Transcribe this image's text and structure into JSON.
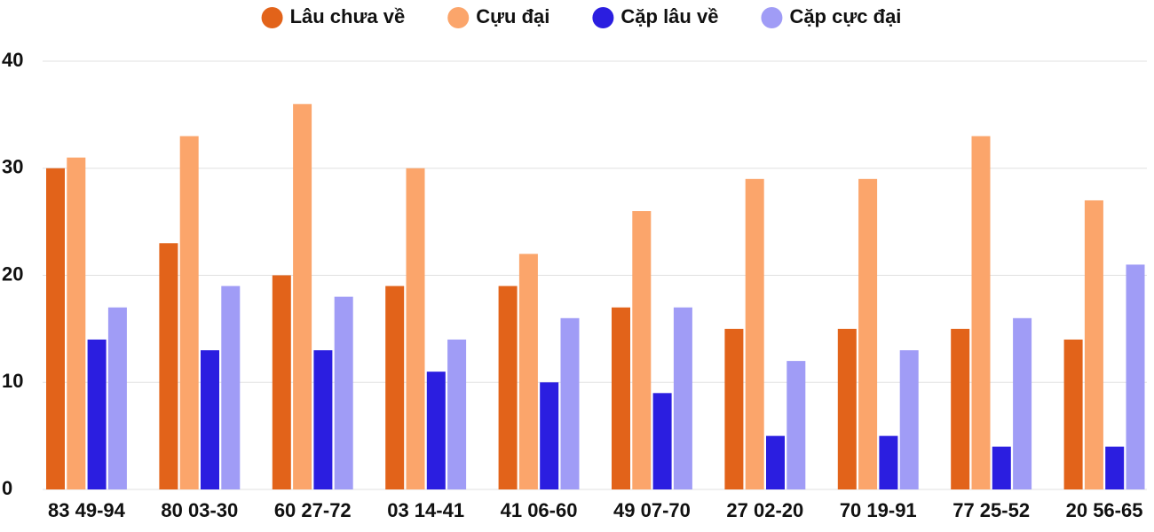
{
  "chart_data": {
    "type": "bar",
    "categories": [
      "83 49-94",
      "80 03-30",
      "60 27-72",
      "03 14-41",
      "41 06-60",
      "49 07-70",
      "27 02-20",
      "70 19-91",
      "77 25-52",
      "20 56-65"
    ],
    "series": [
      {
        "name": "Lâu chưa về",
        "color": "#e2631a",
        "values": [
          30,
          23,
          20,
          19,
          19,
          17,
          15,
          15,
          15,
          14
        ]
      },
      {
        "name": "Cựu đại",
        "color": "#fba56b",
        "values": [
          31,
          33,
          36,
          30,
          22,
          26,
          29,
          29,
          33,
          27
        ]
      },
      {
        "name": "Cặp lâu về",
        "color": "#2b1ee0",
        "values": [
          14,
          13,
          13,
          11,
          10,
          9,
          5,
          5,
          4,
          4
        ]
      },
      {
        "name": "Cặp cực đại",
        "color": "#a09cf6",
        "values": [
          17,
          19,
          18,
          14,
          16,
          17,
          12,
          13,
          16,
          21
        ]
      }
    ],
    "ylim": [
      0,
      40
    ],
    "yticks": [
      0,
      10,
      20,
      30,
      40
    ],
    "grid": true,
    "legend": "top"
  }
}
